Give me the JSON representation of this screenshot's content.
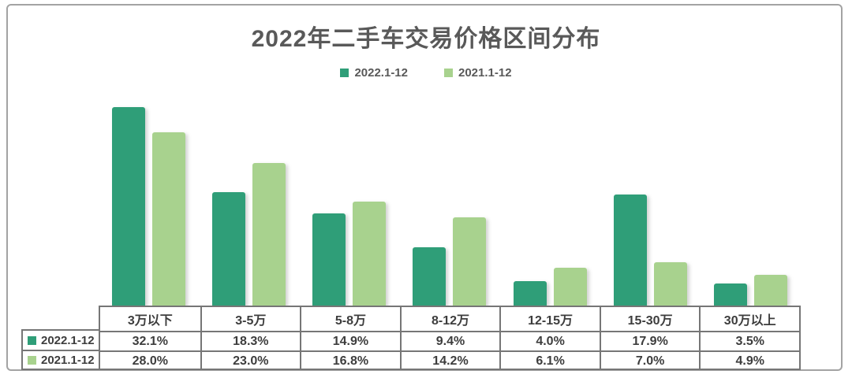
{
  "title": "2022年二手车交易价格区间分布",
  "chart_data": {
    "type": "bar",
    "title": "2022年二手车交易价格区间分布",
    "categories": [
      "3万以下",
      "3-5万",
      "5-8万",
      "8-12万",
      "12-15万",
      "15-30万",
      "30万以上"
    ],
    "series": [
      {
        "name": "2022.1-12",
        "color": "#2f9e78",
        "values": [
          32.1,
          18.3,
          14.9,
          9.4,
          4.0,
          17.9,
          3.5
        ]
      },
      {
        "name": "2021.1-12",
        "color": "#a8d28e",
        "values": [
          28.0,
          23.0,
          16.8,
          14.2,
          6.1,
          7.0,
          4.9
        ]
      }
    ],
    "value_suffix": "%",
    "ylim": [
      0,
      35
    ],
    "grid": false,
    "legend_position": "top",
    "data_table_shown": true
  },
  "colors": {
    "series_2022": "#2f9e78",
    "series_2021": "#a8d28e",
    "title_text": "#595959",
    "table_text": "#3d3d3d",
    "table_border": "#767676",
    "frame_border": "#a3a3a3",
    "background": "#ffffff"
  }
}
